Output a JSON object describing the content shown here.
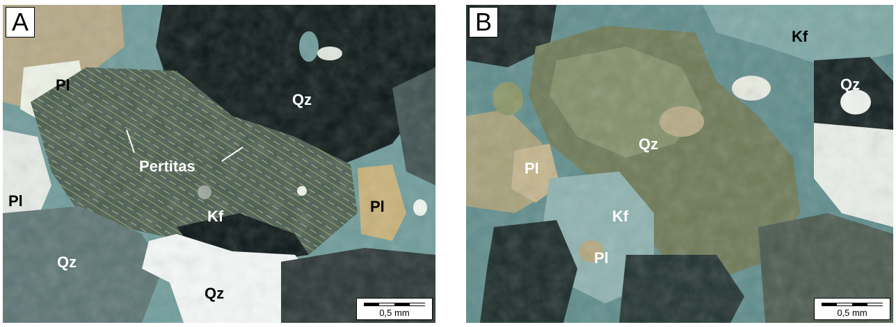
{
  "panel_a": {
    "letter": "A",
    "labels": {
      "pl_top": "Pl",
      "pl_left": "Pl",
      "pl_right": "Pl",
      "qz_top": "Qz",
      "qz_left": "Qz",
      "qz_bottom": "Qz",
      "kf": "Kf",
      "pertitas": "Pertitas"
    },
    "scale_label": "0,5 mm"
  },
  "panel_b": {
    "letter": "B",
    "labels": {
      "kf_top": "Kf",
      "qz_right": "Qz",
      "qz_center": "Qz",
      "pl_left": "Pl",
      "kf_center": "Kf",
      "pl_bottom": "Pl"
    },
    "scale_label": "0,5 mm"
  },
  "colors": {
    "quartz_dark": "#0e1a19",
    "quartz_white": "#f4f8f6",
    "kfeldspar_gray": "#4a5e52",
    "plagioclase_yellow": "#c9b27a",
    "matrix_teal": "#6f9c9b",
    "quartz_olive": "#6e7a58"
  }
}
